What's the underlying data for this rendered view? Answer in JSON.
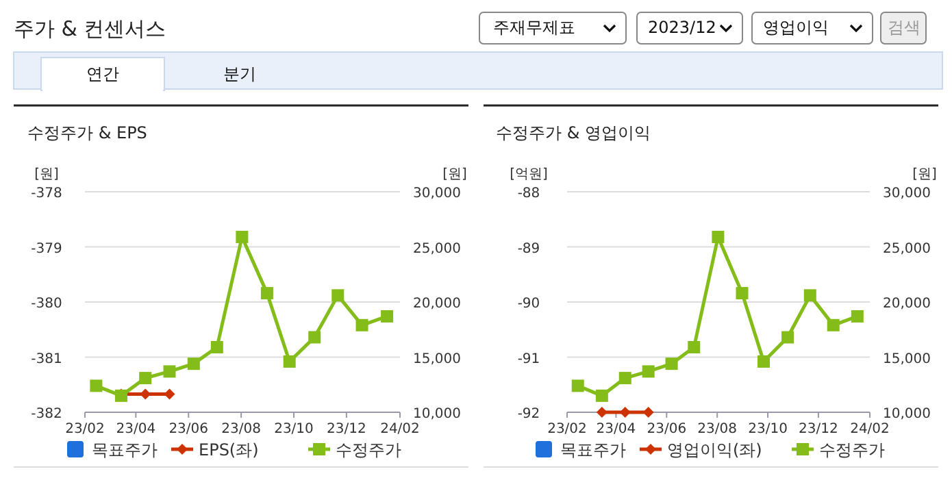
{
  "chart_data": [
    {
      "type": "line",
      "title": "수정주가 & EPS",
      "ylabel": "[원]",
      "y2label": "[원]",
      "annotations": [
        "주가 & 컨센서스",
        "주재무제표",
        "2023/12",
        "영업이익",
        "검색",
        "연간",
        "분기"
      ],
      "xlim": [
        "2023-02",
        "2024-02"
      ],
      "xticks": [
        {
          "value": "2023-02",
          "label": "23/02"
        },
        {
          "value": "2023-04",
          "label": "23/04"
        },
        {
          "value": "2023-06",
          "label": "23/06"
        },
        {
          "value": "2023-08",
          "label": "23/08"
        },
        {
          "value": "2023-10",
          "label": "23/10"
        },
        {
          "value": "2023-12",
          "label": "23/12"
        },
        {
          "value": "2024-02",
          "label": "24/02"
        }
      ],
      "ylim": [
        -382,
        -378
      ],
      "yticks": [
        -382,
        -381,
        -380,
        -379,
        -378
      ],
      "y2lim": [
        10000,
        30000
      ],
      "y2ticks": [
        {
          "value": 10000,
          "label": "10,000"
        },
        {
          "value": 15000,
          "label": "15,000"
        },
        {
          "value": 20000,
          "label": "20,000"
        },
        {
          "value": 25000,
          "label": "25,000"
        },
        {
          "value": 30000,
          "label": "30,000"
        }
      ],
      "grid": "y",
      "legend": "bottom",
      "series": [
        {
          "name": "목표주가",
          "color": "#1f6fdc",
          "marker": "square"
        },
        {
          "name": "EPS(좌)",
          "color": "#cc3300",
          "marker": "diamond",
          "x": [
            "2023-03-15",
            "2023-04-12",
            "2023-05-10"
          ],
          "values": [
            -381.67,
            -381.67,
            -381.67
          ]
        },
        {
          "name": "수정주가",
          "color": "#84bd1a",
          "marker": "square",
          "axis": "y2",
          "x": [
            "2023-02-14",
            "2023-03-15",
            "2023-04-12",
            "2023-05-10",
            "2023-06-07",
            "2023-07-04",
            "2023-08-02",
            "2023-08-31",
            "2023-09-26",
            "2023-10-25",
            "2023-11-21",
            "2023-12-19",
            "2024-01-17"
          ],
          "values": [
            12400,
            11500,
            13100,
            13700,
            14400,
            15900,
            25900,
            20800,
            14600,
            16800,
            20600,
            17900,
            18700
          ]
        }
      ]
    },
    {
      "type": "line",
      "title": "수정주가 & 영업이익",
      "ylabel": "[억원]",
      "y2label": "[원]",
      "xlim": [
        "2023-02",
        "2024-02"
      ],
      "xticks": [
        {
          "value": "2023-02",
          "label": "23/02"
        },
        {
          "value": "2023-04",
          "label": "23/04"
        },
        {
          "value": "2023-06",
          "label": "23/06"
        },
        {
          "value": "2023-08",
          "label": "23/08"
        },
        {
          "value": "2023-10",
          "label": "23/10"
        },
        {
          "value": "2023-12",
          "label": "23/12"
        },
        {
          "value": "2024-02",
          "label": "24/02"
        }
      ],
      "ylim": [
        -92,
        -88
      ],
      "yticks": [
        -92,
        -91,
        -90,
        -89,
        -88
      ],
      "y2lim": [
        10000,
        30000
      ],
      "y2ticks": [
        {
          "value": 10000,
          "label": "10,000"
        },
        {
          "value": 15000,
          "label": "15,000"
        },
        {
          "value": 20000,
          "label": "20,000"
        },
        {
          "value": 25000,
          "label": "25,000"
        },
        {
          "value": 30000,
          "label": "30,000"
        }
      ],
      "grid": "y",
      "legend": "bottom",
      "series": [
        {
          "name": "목표주가",
          "color": "#1f6fdc",
          "marker": "square"
        },
        {
          "name": "영업이익(좌)",
          "color": "#cc3300",
          "marker": "diamond",
          "x": [
            "2023-03-15",
            "2023-04-12",
            "2023-05-10"
          ],
          "values": [
            -92,
            -92,
            -92
          ]
        },
        {
          "name": "수정주가",
          "color": "#84bd1a",
          "marker": "square",
          "axis": "y2",
          "x": [
            "2023-02-14",
            "2023-03-15",
            "2023-04-12",
            "2023-05-10",
            "2023-06-07",
            "2023-07-04",
            "2023-08-02",
            "2023-08-31",
            "2023-09-26",
            "2023-10-25",
            "2023-11-21",
            "2023-12-19",
            "2024-01-17"
          ],
          "values": [
            12400,
            11500,
            13100,
            13700,
            14400,
            15900,
            25900,
            20800,
            14600,
            16800,
            20600,
            17900,
            18700
          ]
        }
      ]
    }
  ]
}
